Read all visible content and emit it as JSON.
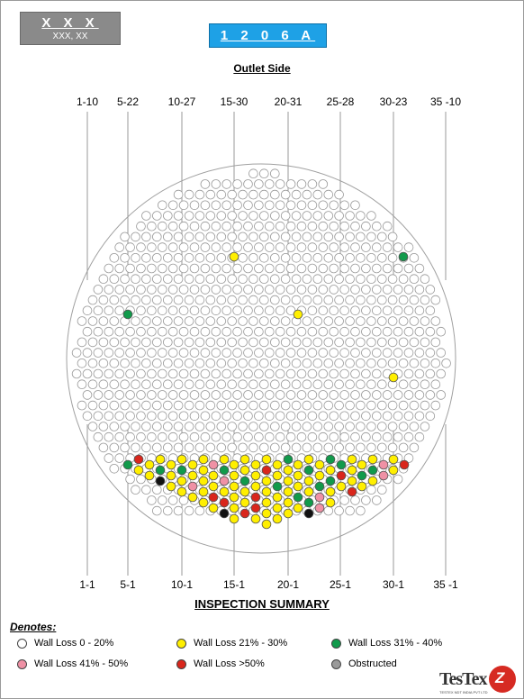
{
  "header": {
    "title": "X X X",
    "subtitle": "XXX, XX"
  },
  "tag": "1 2 0 6  A",
  "outlet_label": "Outlet Side",
  "top_row_labels": [
    "1-10",
    "5-22",
    "10-27",
    "15-30",
    "20-31",
    "25-28",
    "30-23",
    "35 -10"
  ],
  "bottom_row_labels": [
    "1-1",
    "5-1",
    "10-1",
    "15-1",
    "20-1",
    "25-1",
    "30-1",
    "35 -1"
  ],
  "summary_title": "INSPECTION SUMMARY",
  "denotes_label": "Denotes:",
  "legend": [
    {
      "key": "white",
      "label": "Wall Loss 0 - 20%",
      "color": "#ffffff"
    },
    {
      "key": "yellow",
      "label": "Wall Loss 21% - 30%",
      "color": "#ffef00"
    },
    {
      "key": "green",
      "label": "Wall Loss 31% - 40%",
      "color": "#119a4b"
    },
    {
      "key": "pink",
      "label": "Wall Loss 41% - 50%",
      "color": "#ef91a5"
    },
    {
      "key": "red",
      "label": "Wall Loss >50%",
      "color": "#d9261c"
    },
    {
      "key": "gray",
      "label": "Obstructed",
      "color": "#9a9a9a"
    }
  ],
  "logo": {
    "text": "TesTex",
    "sub": "TESTEX NDT INDIA PVT LTD",
    "mark": "Z"
  },
  "colors": {
    "tube_outline": "#9a9a9a",
    "shell_outline": "#a0a0a0",
    "guide_line": "#9a9a9a"
  }
}
